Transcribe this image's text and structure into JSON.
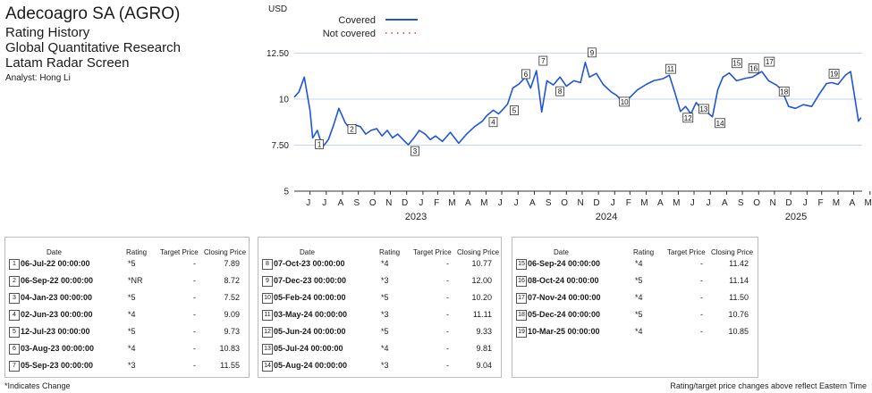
{
  "header": {
    "company": "Adecoagro SA (AGRO)",
    "lines": [
      "Rating History",
      "Global Quantitative Research",
      "Latam Radar Screen"
    ],
    "analyst": "Analyst: Hong Li"
  },
  "colors": {
    "covered": "#1f55d6",
    "not_covered": "#e03030",
    "grid": "#c8d3ee",
    "text": "#1a1a1a"
  },
  "chart_data": {
    "type": "line",
    "ylabel": "USD",
    "y_ticks": [
      "5",
      "7.50",
      "10",
      "12.50"
    ],
    "ylim": [
      5,
      15
    ],
    "x_months": [
      "J",
      "J",
      "A",
      "S",
      "O",
      "N",
      "D",
      "J",
      "F",
      "M",
      "A",
      "M",
      "J",
      "J",
      "A",
      "S",
      "O",
      "N",
      "D",
      "J",
      "F",
      "M",
      "A",
      "M",
      "J",
      "J",
      "A",
      "S",
      "O",
      "N",
      "D",
      "J",
      "F",
      "M",
      "A",
      "M"
    ],
    "x_years": [
      "2023",
      "2024",
      "2025"
    ],
    "legend": [
      {
        "name": "Covered",
        "style": "solid",
        "color": "#1f55d6"
      },
      {
        "name": "Not covered",
        "style": "dotted",
        "color": "#e03030"
      }
    ],
    "series": [
      {
        "name": "Covered",
        "x": [
          "2022-06-01",
          "2022-06-10",
          "2022-06-20",
          "2022-07-01",
          "2022-07-06",
          "2022-07-15",
          "2022-07-25",
          "2022-08-05",
          "2022-08-15",
          "2022-08-25",
          "2022-09-06",
          "2022-09-15",
          "2022-09-25",
          "2022-10-05",
          "2022-10-15",
          "2022-10-25",
          "2022-11-05",
          "2022-11-15",
          "2022-11-25",
          "2022-12-05",
          "2022-12-15",
          "2022-12-25",
          "2023-01-04",
          "2023-01-15",
          "2023-01-25",
          "2023-02-05",
          "2023-02-15",
          "2023-02-25",
          "2023-03-10",
          "2023-03-25",
          "2023-04-10",
          "2023-04-25",
          "2023-05-10",
          "2023-05-25",
          "2023-06-02",
          "2023-06-15",
          "2023-06-25",
          "2023-07-05",
          "2023-07-12",
          "2023-07-22",
          "2023-08-03",
          "2023-08-15",
          "2023-08-25",
          "2023-09-05",
          "2023-09-15",
          "2023-09-25",
          "2023-10-07",
          "2023-10-20",
          "2023-11-01",
          "2023-11-15",
          "2023-11-28",
          "2023-12-07",
          "2023-12-15",
          "2023-12-28",
          "2024-01-10",
          "2024-01-25",
          "2024-02-05",
          "2024-02-15",
          "2024-03-01",
          "2024-03-15",
          "2024-04-01",
          "2024-04-15",
          "2024-05-03",
          "2024-05-15",
          "2024-05-25",
          "2024-06-05",
          "2024-06-15",
          "2024-06-25",
          "2024-07-05",
          "2024-07-15",
          "2024-07-25",
          "2024-08-05",
          "2024-08-15",
          "2024-08-25",
          "2024-09-06",
          "2024-09-20",
          "2024-10-08",
          "2024-10-20",
          "2024-11-07",
          "2024-11-20",
          "2024-12-05",
          "2024-12-15",
          "2024-12-28",
          "2025-01-10",
          "2025-01-25",
          "2025-02-10",
          "2025-02-25",
          "2025-03-10",
          "2025-03-20",
          "2025-04-01",
          "2025-04-15",
          "2025-04-25",
          "2025-05-05",
          "2025-05-10",
          "2025-05-15"
        ],
        "values": [
          10.1,
          10.4,
          11.2,
          9.4,
          7.89,
          8.3,
          7.4,
          7.8,
          8.6,
          9.5,
          8.72,
          8.4,
          8.6,
          8.5,
          8.1,
          8.3,
          8.4,
          8.0,
          8.3,
          7.9,
          8.1,
          7.8,
          7.52,
          7.9,
          8.3,
          8.1,
          7.8,
          8.0,
          7.7,
          8.2,
          7.6,
          8.1,
          8.5,
          8.8,
          9.09,
          9.4,
          9.2,
          9.5,
          9.73,
          10.6,
          10.83,
          11.2,
          10.6,
          11.55,
          9.3,
          11.0,
          10.77,
          11.2,
          10.7,
          11.0,
          10.9,
          12.0,
          11.2,
          11.4,
          10.8,
          10.4,
          10.2,
          9.9,
          10.1,
          10.5,
          10.8,
          11.0,
          11.11,
          11.3,
          10.4,
          9.33,
          9.6,
          9.2,
          9.81,
          9.5,
          9.3,
          9.04,
          10.5,
          11.2,
          11.42,
          11.0,
          11.14,
          11.2,
          11.5,
          11.0,
          10.76,
          10.5,
          9.6,
          9.5,
          9.7,
          9.6,
          10.3,
          10.85,
          10.9,
          10.8,
          11.3,
          11.5,
          9.7,
          8.8,
          9.0
        ]
      }
    ],
    "events": [
      {
        "n": "1",
        "date": "06-Jul-22 00:00:00",
        "rating": "*5",
        "target": "-",
        "close": "7.89",
        "x": "2022-07-06",
        "y": 7.89
      },
      {
        "n": "2",
        "date": "06-Sep-22 00:00:00",
        "rating": "*NR",
        "target": "-",
        "close": "8.72",
        "x": "2022-09-06",
        "y": 8.72
      },
      {
        "n": "3",
        "date": "04-Jan-23 00:00:00",
        "rating": "*5",
        "target": "-",
        "close": "7.52",
        "x": "2023-01-04",
        "y": 7.52
      },
      {
        "n": "4",
        "date": "02-Jun-23 00:00:00",
        "rating": "*4",
        "target": "-",
        "close": "9.09",
        "x": "2023-06-02",
        "y": 9.09
      },
      {
        "n": "5",
        "date": "12-Jul-23 00:00:00",
        "rating": "*5",
        "target": "-",
        "close": "9.73",
        "x": "2023-07-12",
        "y": 9.73
      },
      {
        "n": "6",
        "date": "03-Aug-23 00:00:00",
        "rating": "*4",
        "target": "-",
        "close": "10.83",
        "x": "2023-08-03",
        "y": 10.83
      },
      {
        "n": "7",
        "date": "05-Sep-23 00:00:00",
        "rating": "*3",
        "target": "-",
        "close": "11.55",
        "x": "2023-09-05",
        "y": 11.55
      },
      {
        "n": "8",
        "date": "07-Oct-23 00:00:00",
        "rating": "*4",
        "target": "-",
        "close": "10.77",
        "x": "2023-10-07",
        "y": 10.77
      },
      {
        "n": "9",
        "date": "07-Dec-23 00:00:00",
        "rating": "*3",
        "target": "-",
        "close": "12.00",
        "x": "2023-12-07",
        "y": 12.0
      },
      {
        "n": "10",
        "date": "05-Feb-24 00:00:00",
        "rating": "*5",
        "target": "-",
        "close": "10.20",
        "x": "2024-02-05",
        "y": 10.2
      },
      {
        "n": "11",
        "date": "03-May-24 00:00:00",
        "rating": "*3",
        "target": "-",
        "close": "11.11",
        "x": "2024-05-03",
        "y": 11.11
      },
      {
        "n": "12",
        "date": "05-Jun-24 00:00:00",
        "rating": "*5",
        "target": "-",
        "close": "9.33",
        "x": "2024-06-05",
        "y": 9.33
      },
      {
        "n": "13",
        "date": "05-Jul-24 00:00:00",
        "rating": "*4",
        "target": "-",
        "close": "9.81",
        "x": "2024-07-05",
        "y": 9.81
      },
      {
        "n": "14",
        "date": "05-Aug-24 00:00:00",
        "rating": "*3",
        "target": "-",
        "close": "9.04",
        "x": "2024-08-05",
        "y": 9.04
      },
      {
        "n": "15",
        "date": "06-Sep-24 00:00:00",
        "rating": "*4",
        "target": "-",
        "close": "11.42",
        "x": "2024-09-06",
        "y": 11.42
      },
      {
        "n": "16",
        "date": "08-Oct-24 00:00:00",
        "rating": "*5",
        "target": "-",
        "close": "11.14",
        "x": "2024-10-08",
        "y": 11.14
      },
      {
        "n": "17",
        "date": "07-Nov-24 00:00:00",
        "rating": "*4",
        "target": "-",
        "close": "11.50",
        "x": "2024-11-07",
        "y": 11.5
      },
      {
        "n": "18",
        "date": "05-Dec-24 00:00:00",
        "rating": "*5",
        "target": "-",
        "close": "10.76",
        "x": "2024-12-05",
        "y": 10.76
      },
      {
        "n": "19",
        "date": "10-Mar-25 00:00:00",
        "rating": "*4",
        "target": "-",
        "close": "10.85",
        "x": "2025-03-10",
        "y": 10.85
      }
    ]
  },
  "table": {
    "headers": {
      "date": "Date",
      "rating": "Rating",
      "target": "Target Price",
      "close": "Closing Price"
    }
  },
  "footer": {
    "left": "*Indicates Change",
    "right": "Rating/target price changes above reflect Eastern Time"
  }
}
